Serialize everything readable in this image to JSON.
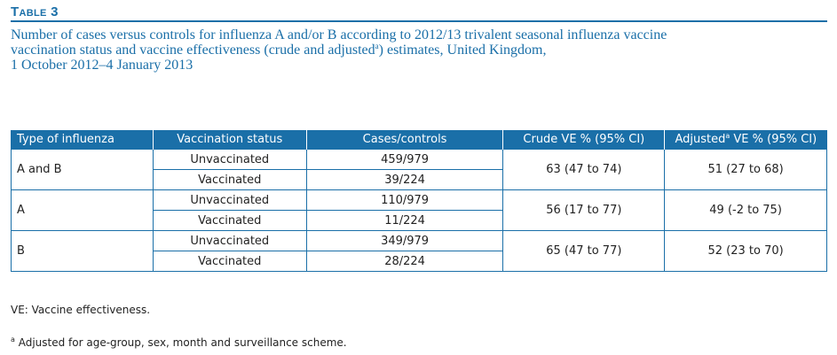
{
  "table_label": "Table 3",
  "caption": {
    "line1": "Number of cases versus controls for influenza A and/or B according to 2012/13 trivalent seasonal influenza vaccine",
    "line2_pre": "vaccination status and vaccine effectiveness (crude and adjusted",
    "line2_sup": "a",
    "line2_post": ") estimates, United Kingdom,",
    "line3": "1 October 2012–4 January 2013"
  },
  "headers": {
    "type": "Type of influenza",
    "status": "Vaccination status",
    "cases": "Cases/controls",
    "crude": "Crude VE % (95% CI)",
    "adjusted_pre": "Adjusted",
    "adjusted_sup": "a",
    "adjusted_post": " VE % (95% CI)"
  },
  "groups": [
    {
      "type": "A and B",
      "rows": [
        {
          "status": "Unvaccinated",
          "cases": "459/979"
        },
        {
          "status": "Vaccinated",
          "cases": "39/224"
        }
      ],
      "crude": "63 (47 to 74)",
      "adjusted": "51 (27 to 68)"
    },
    {
      "type": "A",
      "rows": [
        {
          "status": "Unvaccinated",
          "cases": "110/979"
        },
        {
          "status": "Vaccinated",
          "cases": "11/224"
        }
      ],
      "crude": "56 (17 to 77)",
      "adjusted": "49 (-2 to 75)"
    },
    {
      "type": "B",
      "rows": [
        {
          "status": "Unvaccinated",
          "cases": "349/979"
        },
        {
          "status": "Vaccinated",
          "cases": "28/224"
        }
      ],
      "crude": "65 (47 to 77)",
      "adjusted": "52 (23 to 70)"
    }
  ],
  "notes": {
    "ve": "VE: Vaccine effectiveness.",
    "adjusted_sup": "a",
    "adjusted": " Adjusted for age-group, sex, month and surveillance scheme."
  },
  "colors": {
    "accent": "#1a6fa8"
  }
}
